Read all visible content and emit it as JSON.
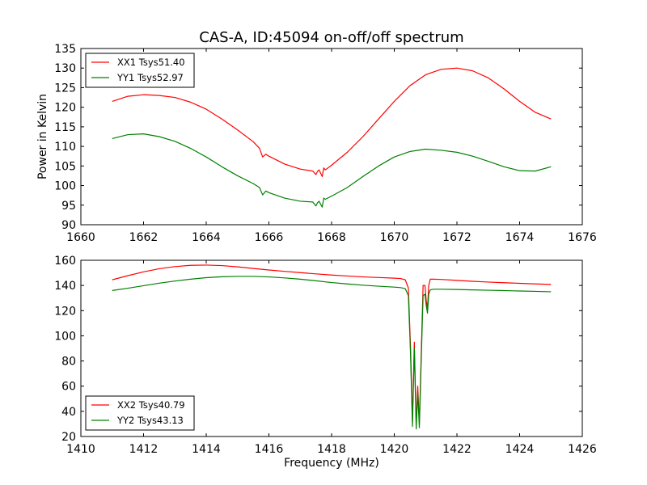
{
  "title": "CAS-A, ID:45094 on-off/off spectrum",
  "chart_data": [
    {
      "type": "line",
      "ylabel": "Power in Kelvin",
      "xlabel": "",
      "xlim": [
        1660,
        1676
      ],
      "ylim": [
        90,
        135
      ],
      "xticks": [
        "1660",
        "1662",
        "1664",
        "1666",
        "1668",
        "1670",
        "1672",
        "1674",
        "1676"
      ],
      "yticks": [
        "90",
        "95",
        "100",
        "105",
        "110",
        "115",
        "120",
        "125",
        "130",
        "135"
      ],
      "legend": "top-left",
      "grid": false,
      "series": [
        {
          "name": "XX1 Tsys51.40",
          "color": "#ff0000",
          "x": [
            1661.0,
            1661.5,
            1662.0,
            1662.5,
            1663.0,
            1663.5,
            1664.0,
            1664.5,
            1665.0,
            1665.5,
            1665.7,
            1665.8,
            1665.9,
            1666.0,
            1666.5,
            1667.0,
            1667.4,
            1667.5,
            1667.55,
            1667.6,
            1667.7,
            1667.75,
            1667.8,
            1668.0,
            1668.5,
            1669.0,
            1669.5,
            1670.0,
            1670.5,
            1671.0,
            1671.5,
            1672.0,
            1672.5,
            1673.0,
            1673.5,
            1674.0,
            1674.5,
            1675.0
          ],
          "y": [
            121.5,
            122.8,
            123.2,
            123.0,
            122.5,
            121.3,
            119.5,
            117.0,
            114.2,
            111.2,
            109.5,
            107.3,
            108.0,
            107.5,
            105.5,
            104.2,
            103.7,
            102.8,
            103.6,
            104.0,
            102.3,
            104.5,
            104.0,
            105.2,
            108.5,
            112.5,
            117.0,
            121.5,
            125.5,
            128.3,
            129.7,
            130.0,
            129.3,
            127.5,
            124.7,
            121.5,
            118.7,
            117.0
          ]
        },
        {
          "name": "YY1 Tsys52.97",
          "color": "#008000",
          "x": [
            1661.0,
            1661.5,
            1662.0,
            1662.5,
            1663.0,
            1663.5,
            1664.0,
            1664.5,
            1665.0,
            1665.5,
            1665.7,
            1665.8,
            1665.9,
            1666.0,
            1666.5,
            1667.0,
            1667.4,
            1667.5,
            1667.55,
            1667.6,
            1667.7,
            1667.75,
            1667.8,
            1668.0,
            1668.5,
            1669.0,
            1669.5,
            1670.0,
            1670.5,
            1671.0,
            1671.5,
            1672.0,
            1672.5,
            1673.0,
            1673.5,
            1674.0,
            1674.5,
            1675.0
          ],
          "y": [
            112.0,
            113.0,
            113.2,
            112.5,
            111.3,
            109.5,
            107.3,
            104.8,
            102.5,
            100.5,
            99.5,
            97.6,
            98.6,
            98.2,
            96.8,
            96.0,
            95.8,
            94.8,
            95.6,
            96.0,
            94.5,
            96.8,
            96.5,
            97.3,
            99.5,
            102.3,
            105.0,
            107.3,
            108.7,
            109.3,
            109.0,
            108.5,
            107.5,
            106.2,
            104.8,
            103.8,
            103.7,
            104.8
          ]
        }
      ]
    },
    {
      "type": "line",
      "ylabel": "",
      "xlabel": "Frequency (MHz)",
      "xlim": [
        1410,
        1426
      ],
      "ylim": [
        20,
        160
      ],
      "xticks": [
        "1410",
        "1412",
        "1414",
        "1416",
        "1418",
        "1420",
        "1422",
        "1424",
        "1426"
      ],
      "yticks": [
        "20",
        "40",
        "60",
        "80",
        "100",
        "120",
        "140",
        "160"
      ],
      "legend": "bottom-left",
      "grid": false,
      "series": [
        {
          "name": "XX2 Tsys40.79",
          "color": "#ff0000",
          "x": [
            1411.0,
            1411.5,
            1412.0,
            1412.5,
            1413.0,
            1413.5,
            1414.0,
            1414.5,
            1415.0,
            1415.5,
            1416.0,
            1416.5,
            1417.0,
            1417.5,
            1418.0,
            1418.5,
            1419.0,
            1419.5,
            1420.0,
            1420.2,
            1420.35,
            1420.45,
            1420.52,
            1420.58,
            1420.64,
            1420.7,
            1420.75,
            1420.8,
            1420.86,
            1420.92,
            1420.98,
            1421.02,
            1421.06,
            1421.1,
            1421.15,
            1421.25,
            1421.5,
            1422.0,
            1422.5,
            1423.0,
            1423.5,
            1424.0,
            1424.5,
            1425.0
          ],
          "y": [
            144.5,
            147.8,
            150.8,
            153.3,
            155.0,
            156.0,
            156.2,
            155.8,
            154.8,
            153.5,
            152.3,
            151.2,
            150.2,
            149.2,
            148.3,
            147.5,
            146.8,
            146.3,
            145.8,
            145.5,
            144.5,
            138.0,
            90.0,
            32.0,
            95.0,
            30.0,
            60.0,
            30.0,
            85.0,
            140.0,
            140.0,
            128.0,
            122.0,
            140.0,
            145.0,
            145.0,
            144.8,
            144.0,
            143.3,
            142.7,
            142.2,
            141.7,
            141.2,
            140.8
          ]
        },
        {
          "name": "YY2 Tsys43.13",
          "color": "#008000",
          "x": [
            1411.0,
            1411.5,
            1412.0,
            1412.5,
            1413.0,
            1413.5,
            1414.0,
            1414.5,
            1415.0,
            1415.5,
            1416.0,
            1416.5,
            1417.0,
            1417.5,
            1418.0,
            1418.5,
            1419.0,
            1419.5,
            1420.0,
            1420.2,
            1420.35,
            1420.45,
            1420.52,
            1420.58,
            1420.64,
            1420.7,
            1420.75,
            1420.8,
            1420.86,
            1420.92,
            1420.98,
            1421.02,
            1421.06,
            1421.1,
            1421.15,
            1421.25,
            1421.5,
            1422.0,
            1422.5,
            1423.0,
            1423.5,
            1424.0,
            1424.5,
            1425.0
          ],
          "y": [
            136.0,
            137.8,
            139.8,
            141.8,
            143.5,
            145.0,
            146.2,
            146.9,
            147.2,
            147.2,
            146.8,
            146.0,
            145.0,
            143.7,
            142.3,
            141.2,
            140.2,
            139.4,
            138.7,
            138.3,
            137.5,
            132.0,
            85.0,
            28.0,
            90.0,
            26.0,
            55.0,
            27.0,
            80.0,
            132.0,
            133.0,
            124.0,
            118.0,
            133.0,
            136.5,
            137.0,
            137.0,
            136.8,
            136.5,
            136.2,
            135.9,
            135.6,
            135.3,
            135.0
          ]
        }
      ]
    }
  ]
}
